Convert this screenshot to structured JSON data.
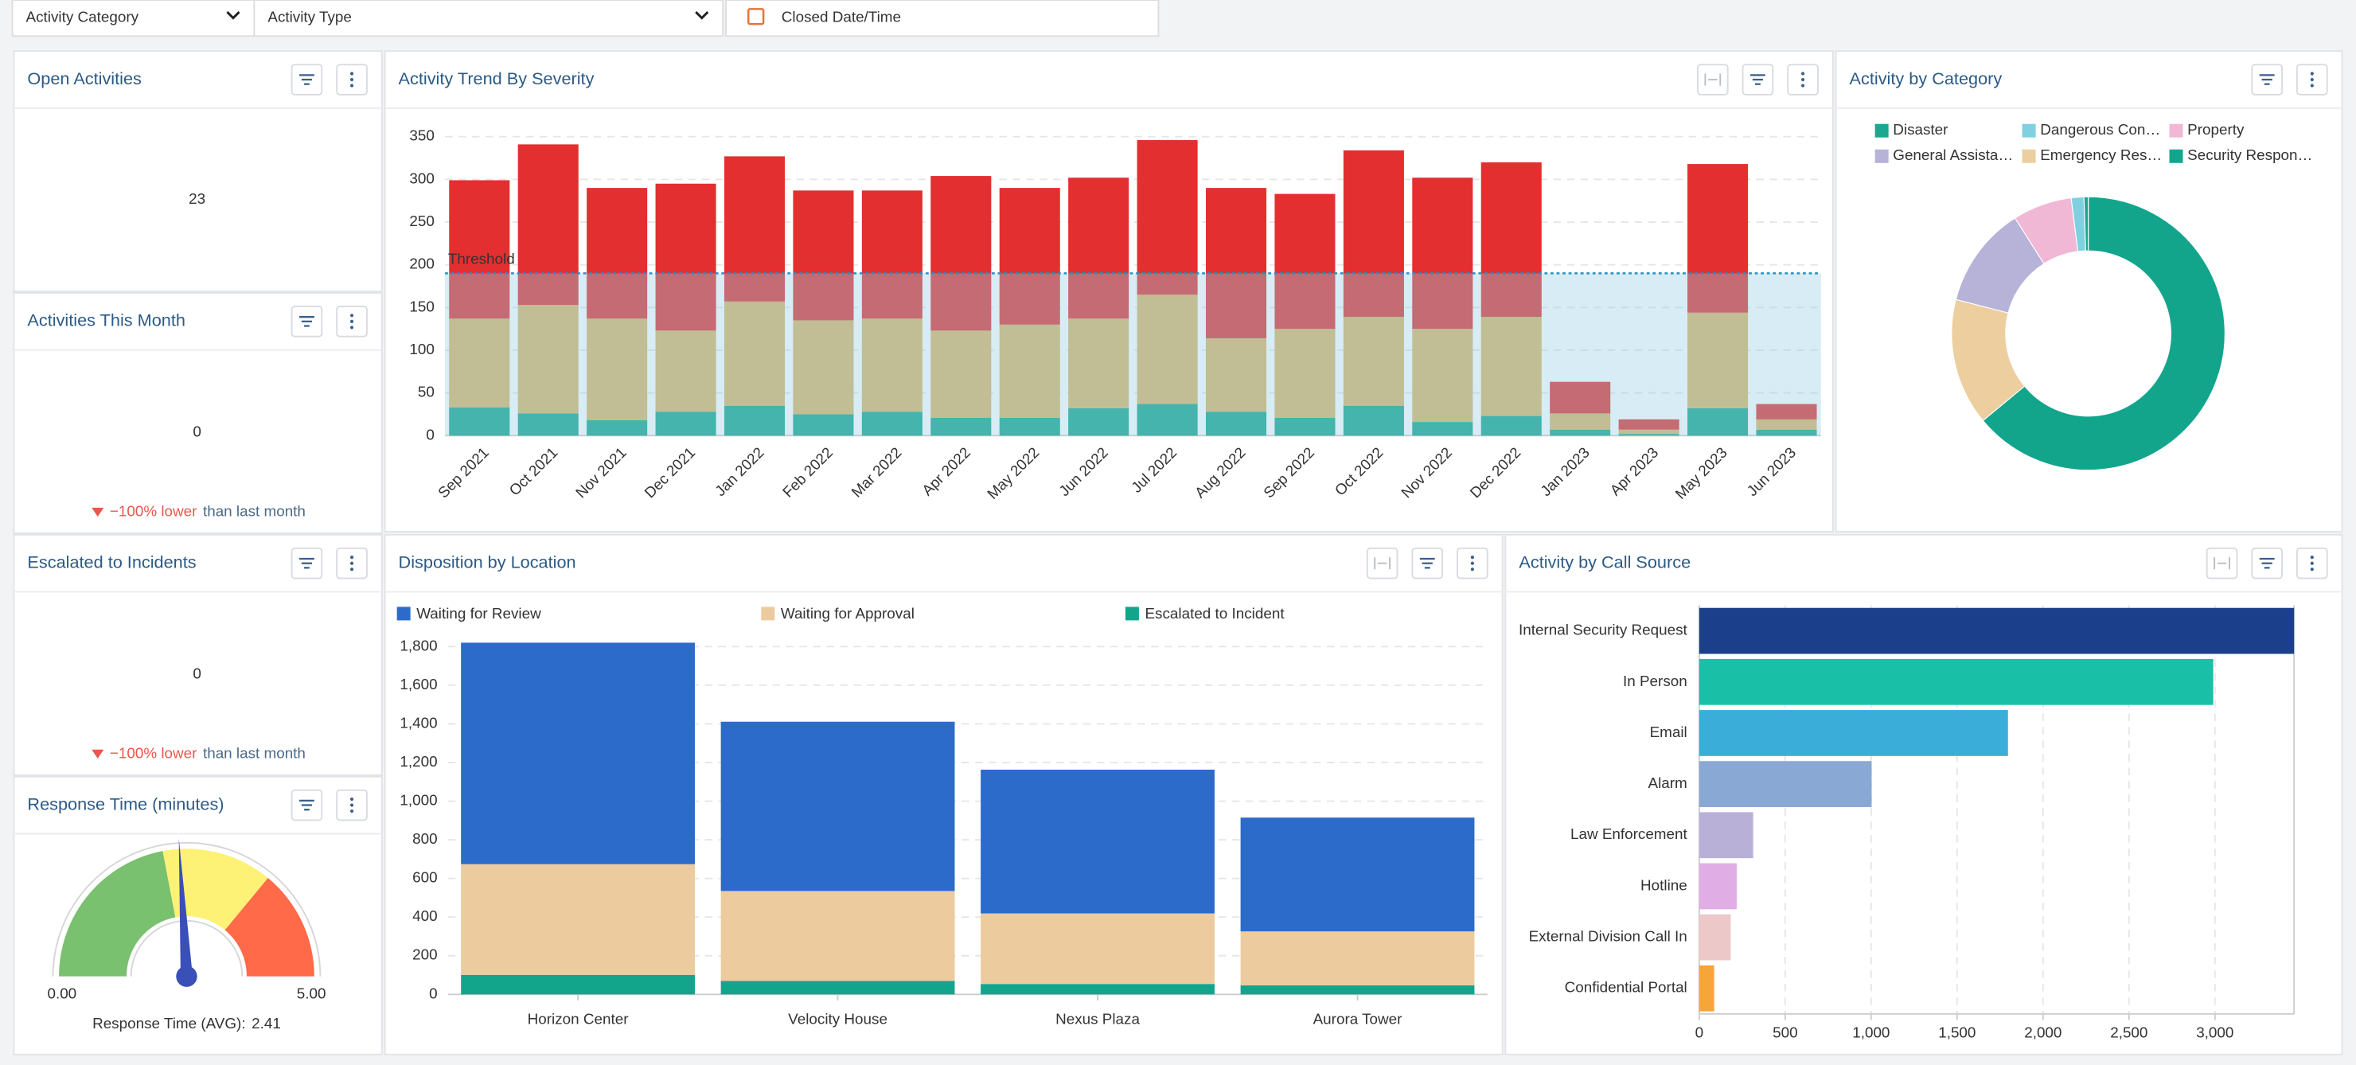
{
  "filters": [
    "Activity Category",
    "Activity Type",
    "Closed Date/Time"
  ],
  "widgets": [
    {
      "title": "Open Activities",
      "value": 23
    },
    {
      "title": "Activities This Month",
      "value": 0,
      "change": "−100% lower",
      "comparison": "than last month"
    },
    {
      "title": "Escalated to Incidents",
      "value": 0,
      "change": "−100% lower",
      "comparison": "than last month"
    }
  ],
  "chart_data": [
    {
      "type": "gauge",
      "title": "Response Time (minutes)",
      "value": 2.41,
      "caption": "Response Time (AVG):",
      "xlim": [
        0,
        5
      ],
      "xticks": [
        {
          "value": 0,
          "label": "0.00"
        },
        {
          "value": 5,
          "label": "5.00"
        }
      ],
      "bands": [
        {
          "from": 0,
          "to": 2.2,
          "color": "#79c06f"
        },
        {
          "from": 2.2,
          "to": 3.6,
          "color": "#fdf276"
        },
        {
          "from": 3.6,
          "to": 5,
          "color": "#ff6a48"
        }
      ],
      "needle_color": "#3b4fb8"
    },
    {
      "type": "bar",
      "stacked": true,
      "title": "Activity Trend By Severity",
      "categories": [
        "Sep 2021",
        "Oct 2021",
        "Nov 2021",
        "Dec 2021",
        "Jan 2022",
        "Feb 2022",
        "Mar 2022",
        "Apr 2022",
        "May 2022",
        "Jun 2022",
        "Jul 2022",
        "Aug 2022",
        "Sep 2022",
        "Oct 2022",
        "Nov 2022",
        "Dec 2022",
        "Jan 2023",
        "Apr 2023",
        "May 2023",
        "Jun 2023"
      ],
      "series": [
        {
          "color": "#12a58c",
          "values": [
            33,
            26,
            18,
            28,
            35,
            25,
            28,
            21,
            21,
            32,
            37,
            28,
            21,
            35,
            16,
            23,
            7,
            2,
            32,
            7
          ]
        },
        {
          "color": "#dbb466",
          "values": [
            104,
            127,
            119,
            95,
            122,
            110,
            109,
            102,
            109,
            105,
            128,
            86,
            104,
            104,
            109,
            116,
            19,
            5,
            112,
            12
          ]
        },
        {
          "color": "#e32f2f",
          "values": [
            162,
            188,
            153,
            172,
            170,
            152,
            150,
            181,
            160,
            165,
            181,
            176,
            158,
            195,
            177,
            181,
            37,
            12,
            174,
            18
          ]
        }
      ],
      "ylim": [
        0,
        350
      ],
      "yticks": [
        0,
        50,
        100,
        150,
        200,
        250,
        300,
        350
      ],
      "grid": true,
      "threshold": {
        "value": 190,
        "label": "Threshold",
        "color": "#2a8fc0"
      }
    },
    {
      "type": "pie",
      "title": "Activity by Category",
      "categories": [
        "Disaster",
        "Dangerous Con…",
        "Property",
        "General Assista…",
        "Emergency Res…",
        "Security Respon…"
      ],
      "values": [
        0.5,
        1.5,
        7,
        12,
        15,
        64
      ],
      "colors": [
        "#1aa88f",
        "#7fd0e0",
        "#f0b8d4",
        "#b6b2d8",
        "#ecce9f",
        "#12a58c"
      ]
    },
    {
      "type": "bar",
      "stacked": true,
      "title": "Disposition by Location",
      "categories": [
        "Horizon Center",
        "Velocity House",
        "Nexus Plaza",
        "Aurora Tower"
      ],
      "series": [
        {
          "name": "Waiting for Review",
          "color": "#2d6bcb",
          "values": [
            1146,
            876,
            744,
            589
          ]
        },
        {
          "name": "Waiting for Approval",
          "color": "#eccb9f",
          "values": [
            573,
            465,
            365,
            279
          ]
        },
        {
          "name": "Escalated to Incident",
          "color": "#12a58c",
          "values": [
            101,
            70,
            54,
            47
          ]
        }
      ],
      "stack_order": "last-first",
      "ylim": [
        0,
        1850
      ],
      "yticks": [
        0,
        200,
        400,
        600,
        800,
        {
          "value": 1000,
          "label": "1,000"
        },
        {
          "value": 1200,
          "label": "1,200"
        },
        {
          "value": 1400,
          "label": "1,400"
        },
        {
          "value": 1600,
          "label": "1,600"
        },
        {
          "value": 1800,
          "label": "1,800"
        }
      ],
      "grid": true,
      "legend": "top"
    },
    {
      "type": "bar",
      "horizontal": true,
      "title": "Activity by Call Source",
      "categories": [
        "Internal Security Request",
        "In Person",
        "Email",
        "Alarm",
        "Law Enforcement",
        "Hotline",
        "External Division Call In",
        "Confidential Portal"
      ],
      "values": [
        3460,
        2990,
        1796,
        1003,
        314,
        218,
        183,
        87
      ],
      "colors": [
        "#1b3f8a",
        "#1abfa8",
        "#3aaed8",
        "#8aa8d4",
        "#b9b0d8",
        "#e0aee4",
        "#ecc8c8",
        "#f7a43a"
      ],
      "xlim": [
        0,
        3460
      ],
      "xticks": [
        0,
        500,
        {
          "value": 1000,
          "label": "1,000"
        },
        {
          "value": 1500,
          "label": "1,500"
        },
        {
          "value": 2000,
          "label": "2,000"
        },
        {
          "value": 2500,
          "label": "2,500"
        },
        {
          "value": 3000,
          "label": "3,000"
        }
      ],
      "grid": true
    }
  ]
}
